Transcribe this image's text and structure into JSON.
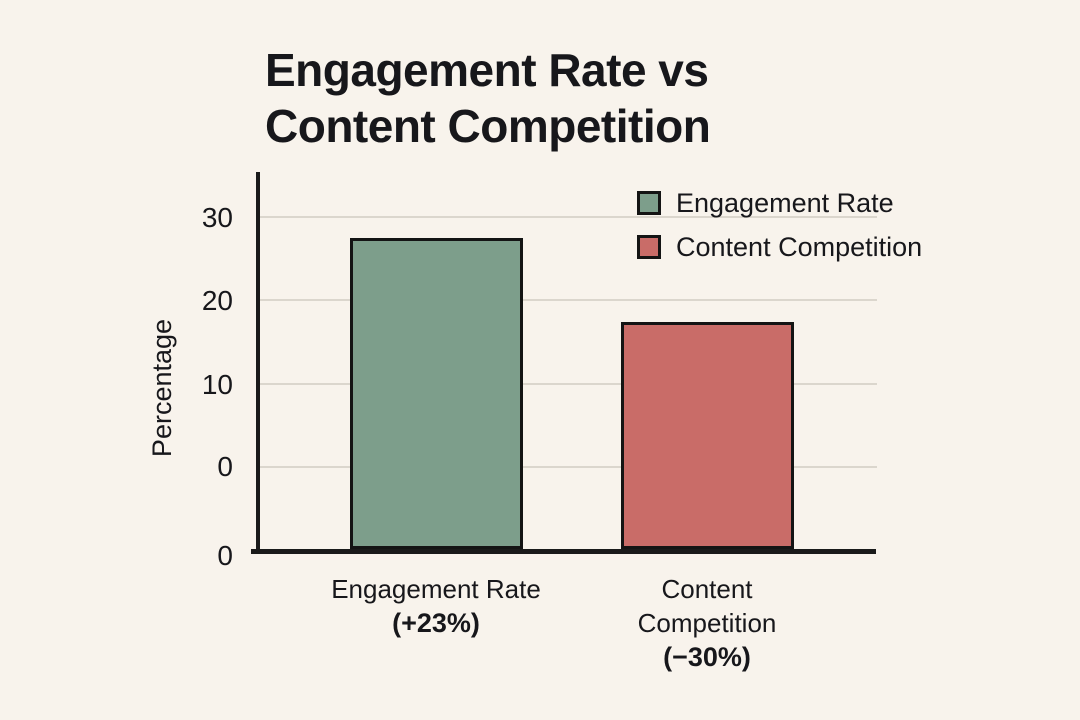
{
  "title": {
    "line1": "Engagement Rate vs",
    "line2": "Content Competition"
  },
  "y_axis": {
    "title": "Percentage",
    "ticks": [
      "30",
      "20",
      "10",
      "0"
    ],
    "origin_label": "0"
  },
  "legend": [
    {
      "label": "Engagement Rate",
      "color": "#7d9e8b"
    },
    {
      "label": "Content Competition",
      "color": "#c96c68"
    }
  ],
  "x_axis": {
    "categories": [
      {
        "lines": [
          "Engagement Rate"
        ],
        "annotation": "(+23%)"
      },
      {
        "lines": [
          "Content",
          "Competition"
        ],
        "annotation": "(−30%)"
      }
    ]
  },
  "colors": {
    "background": "#f8f3ec",
    "axis": "#1a1a1a",
    "gridline": "#dbd6cd",
    "text": "#17171b",
    "bar_engagement": "#7d9e8b",
    "bar_competition": "#c96c68"
  },
  "chart_data": {
    "type": "bar",
    "title": "Engagement Rate vs Content Competition",
    "categories": [
      "Engagement Rate (+23%)",
      "Content Competition (−30%)"
    ],
    "values": [
      27.5,
      17.4
    ],
    "bar_colors": [
      "#7d9e8b",
      "#c96c68"
    ],
    "annotations": [
      "+23%",
      "−30%"
    ],
    "xlabel": "",
    "ylabel": "Percentage",
    "yticks": [
      0,
      10,
      20,
      30
    ],
    "ylim": [
      0,
      33
    ],
    "grid": true,
    "legend_entries": [
      "Engagement Rate",
      "Content Competition"
    ],
    "legend_position": "upper-right"
  }
}
